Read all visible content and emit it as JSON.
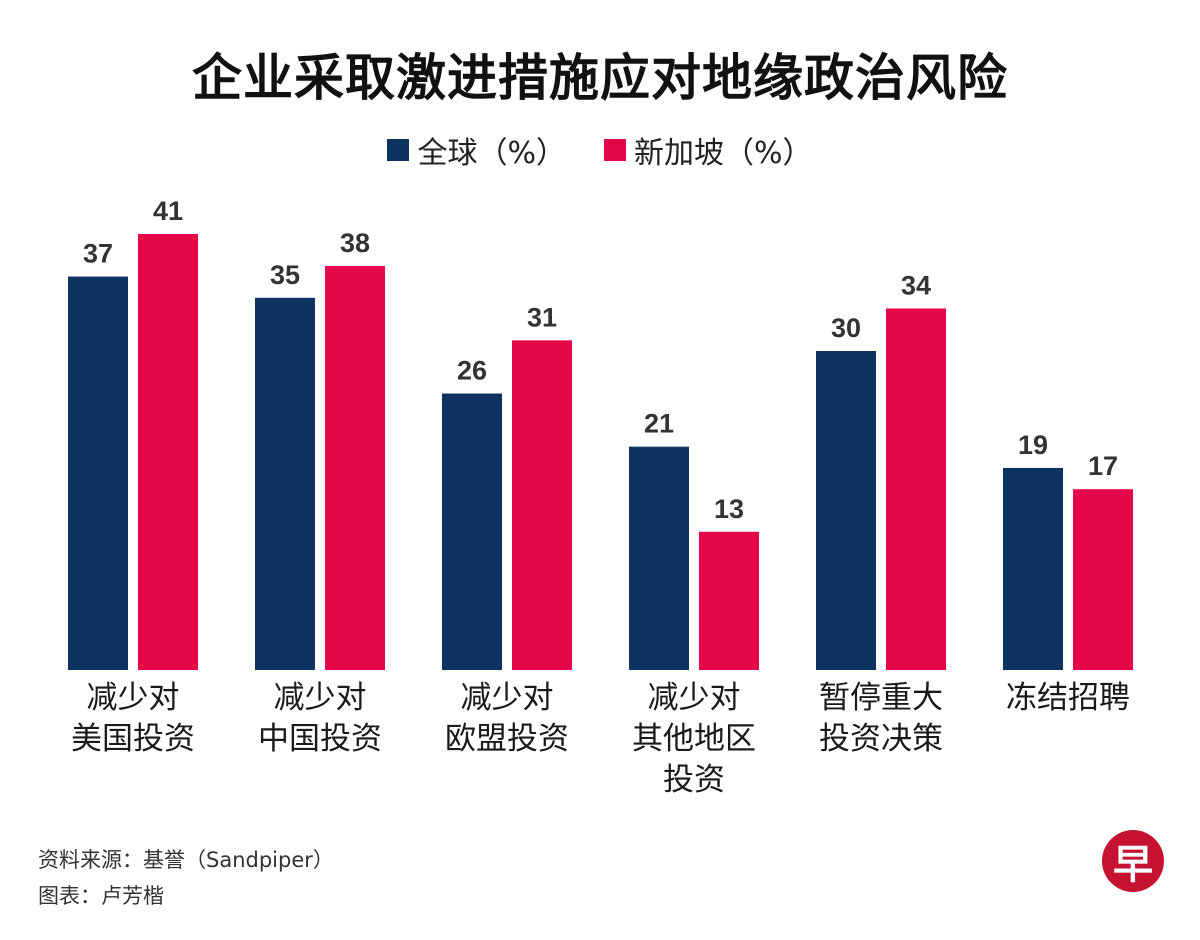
{
  "colors": {
    "global": "#0f3360",
    "singapore": "#e4084b",
    "logo_bg": "#c41230"
  },
  "source": {
    "line1": "资料来源：基誉（Sandpiper）",
    "line2": "图表：卢芳楷"
  },
  "logo": {
    "glyph": "早"
  },
  "chart_data": {
    "type": "bar",
    "title": "企业采取激进措施应对地缘政治风险",
    "categories": [
      [
        "减少对",
        "美国投资"
      ],
      [
        "减少对",
        "中国投资"
      ],
      [
        "减少对",
        "欧盟投资"
      ],
      [
        "减少对",
        "其他地区",
        "投资"
      ],
      [
        "暂停重大",
        "投资决策"
      ],
      [
        "冻结招聘"
      ]
    ],
    "series": [
      {
        "name": "全球（%）",
        "values": [
          37,
          35,
          26,
          21,
          30,
          19
        ]
      },
      {
        "name": "新加坡（%）",
        "values": [
          41,
          38,
          31,
          13,
          34,
          17
        ]
      }
    ],
    "ylim": [
      0,
      41
    ],
    "grid": false,
    "legend": "top-center",
    "xlabel": "",
    "ylabel": ""
  }
}
